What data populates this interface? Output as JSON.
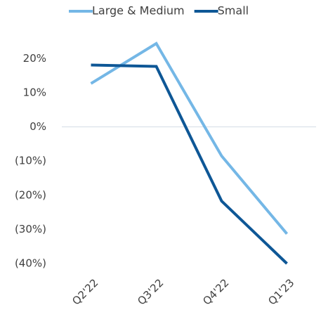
{
  "chart_data": {
    "type": "line",
    "categories": [
      "Q2'22",
      "Q3'22",
      "Q4'22",
      "Q1'23"
    ],
    "series": [
      {
        "name": "Large & Medium",
        "color": "#74b7e6",
        "values": [
          12.7,
          24.4,
          -8.5,
          -31.3
        ]
      },
      {
        "name": "Small",
        "color": "#0e5796",
        "values": [
          18.1,
          17.7,
          -21.7,
          -40
        ]
      }
    ],
    "ylim": [
      -40,
      25
    ],
    "yticks": [
      {
        "value": 20,
        "label": "20%"
      },
      {
        "value": 10,
        "label": "10%"
      },
      {
        "value": 0,
        "label": "0%"
      },
      {
        "value": -10,
        "label": "(10%)"
      },
      {
        "value": -20,
        "label": "(20%)"
      },
      {
        "value": -30,
        "label": "(30%)"
      },
      {
        "value": -40,
        "label": "(40%)"
      }
    ],
    "grid": false,
    "legend": "top"
  }
}
